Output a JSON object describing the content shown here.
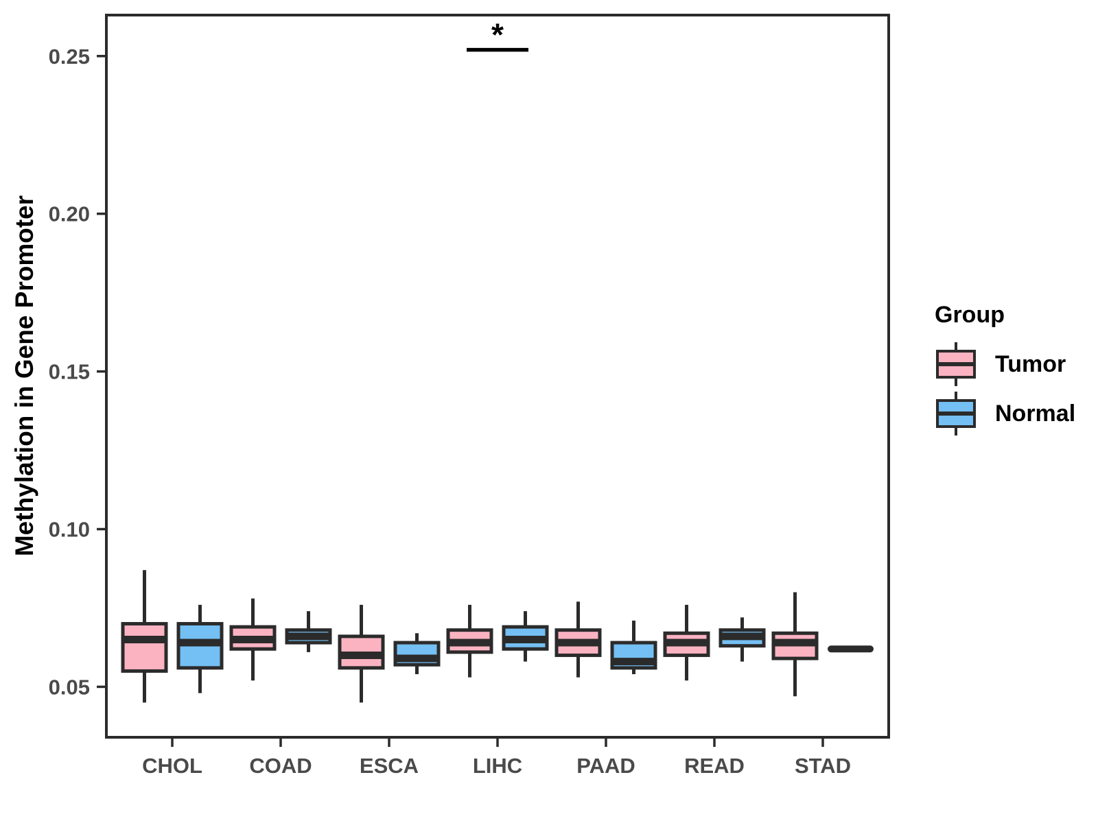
{
  "chart_data": {
    "type": "boxplot",
    "title": "",
    "xlabel": "",
    "ylabel": "Methylation in Gene Promoter",
    "categories": [
      "CHOL",
      "COAD",
      "ESCA",
      "LIHC",
      "PAAD",
      "READ",
      "STAD"
    ],
    "legend": {
      "title": "Group",
      "position": "right"
    },
    "groups": [
      {
        "name": "Tumor",
        "fill": "#FBB3C2"
      },
      {
        "name": "Normal",
        "fill": "#74BFF3"
      }
    ],
    "ylim": [
      0.034,
      0.263
    ],
    "yticks": [
      0.05,
      0.1,
      0.15,
      0.2,
      0.25
    ],
    "grid": false,
    "series": [
      {
        "group": "Tumor",
        "boxes": [
          {
            "category": "CHOL",
            "low": 0.045,
            "q1": 0.055,
            "median": 0.065,
            "q3": 0.07,
            "high": 0.087
          },
          {
            "category": "COAD",
            "low": 0.052,
            "q1": 0.062,
            "median": 0.065,
            "q3": 0.069,
            "high": 0.078
          },
          {
            "category": "ESCA",
            "low": 0.045,
            "q1": 0.056,
            "median": 0.06,
            "q3": 0.066,
            "high": 0.076
          },
          {
            "category": "LIHC",
            "low": 0.053,
            "q1": 0.061,
            "median": 0.064,
            "q3": 0.068,
            "high": 0.076
          },
          {
            "category": "PAAD",
            "low": 0.053,
            "q1": 0.06,
            "median": 0.064,
            "q3": 0.068,
            "high": 0.077
          },
          {
            "category": "READ",
            "low": 0.052,
            "q1": 0.06,
            "median": 0.064,
            "q3": 0.067,
            "high": 0.076
          },
          {
            "category": "STAD",
            "low": 0.047,
            "q1": 0.059,
            "median": 0.064,
            "q3": 0.067,
            "high": 0.08
          }
        ]
      },
      {
        "group": "Normal",
        "boxes": [
          {
            "category": "CHOL",
            "low": 0.048,
            "q1": 0.056,
            "median": 0.064,
            "q3": 0.07,
            "high": 0.076
          },
          {
            "category": "COAD",
            "low": 0.061,
            "q1": 0.064,
            "median": 0.066,
            "q3": 0.068,
            "high": 0.074
          },
          {
            "category": "ESCA",
            "low": 0.054,
            "q1": 0.057,
            "median": 0.059,
            "q3": 0.064,
            "high": 0.067
          },
          {
            "category": "LIHC",
            "low": 0.058,
            "q1": 0.062,
            "median": 0.065,
            "q3": 0.069,
            "high": 0.074
          },
          {
            "category": "PAAD",
            "low": 0.054,
            "q1": 0.056,
            "median": 0.058,
            "q3": 0.064,
            "high": 0.071
          },
          {
            "category": "READ",
            "low": 0.058,
            "q1": 0.063,
            "median": 0.066,
            "q3": 0.068,
            "high": 0.072
          },
          {
            "category": "STAD",
            "low": 0.062,
            "q1": 0.062,
            "median": 0.062,
            "q3": 0.062,
            "high": 0.062,
            "flat": true
          }
        ]
      }
    ],
    "annotation": {
      "label": "*",
      "category": "LIHC",
      "y": 0.252
    },
    "colors": {
      "box_stroke": "#2B2B2B",
      "axis_line": "#2B2B2B",
      "axis_text": "#4A4A4A",
      "axis_title": "#000000",
      "annotation": "#000000"
    }
  }
}
